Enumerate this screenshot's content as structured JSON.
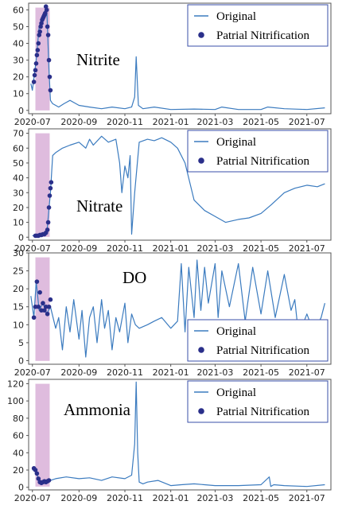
{
  "colors": {
    "line": "#3b7bbf",
    "point": "#2a2f8a",
    "band": "#d9b0d8",
    "frame": "#555555",
    "legend_border": "#3a4fa8"
  },
  "legend": {
    "original": "Original",
    "partial": "Patrial Nitrification"
  },
  "x_ticks": [
    "2020-07",
    "2020-09",
    "2020-11",
    "2021-01",
    "2021-03",
    "2021-05",
    "2021-07"
  ],
  "chart_data": [
    {
      "type": "line",
      "label": "Nitrite",
      "ylim": [
        -2,
        64
      ],
      "yticks": [
        "0",
        "10",
        "20",
        "30",
        "40",
        "50",
        "60"
      ],
      "legend_placement": "top-right",
      "shaded_range": [
        "2020-07-05",
        "2020-07-24"
      ],
      "series": [
        {
          "type": "line",
          "x": [
            "2020-06-29",
            "2020-07-01",
            "2020-07-06",
            "2020-07-10",
            "2020-07-15",
            "2020-07-20",
            "2020-07-23",
            "2020-07-25",
            "2020-07-28",
            "2020-08-05",
            "2020-08-12",
            "2020-08-20",
            "2020-09-01",
            "2020-09-15",
            "2020-10-01",
            "2020-10-15",
            "2020-11-01",
            "2020-11-10",
            "2020-11-14",
            "2020-11-16",
            "2020-11-19",
            "2020-11-25",
            "2020-12-10",
            "2021-01-01",
            "2021-02-01",
            "2021-03-01",
            "2021-03-10",
            "2021-04-01",
            "2021-05-01",
            "2021-05-10",
            "2021-06-01",
            "2021-07-01",
            "2021-07-25"
          ],
          "y": [
            16,
            12,
            30,
            50,
            57,
            62,
            25,
            6,
            4,
            2,
            4,
            6,
            3,
            2,
            1,
            2,
            1,
            2,
            8,
            32,
            3,
            1,
            2,
            0.5,
            0.8,
            0.5,
            2,
            0.5,
            0.5,
            2,
            1,
            0.5,
            1.5
          ]
        },
        {
          "type": "scatter",
          "x": [
            "2020-07-03",
            "2020-07-04",
            "2020-07-05",
            "2020-07-06",
            "2020-07-07",
            "2020-07-08",
            "2020-07-09",
            "2020-07-10",
            "2020-07-11",
            "2020-07-12",
            "2020-07-13",
            "2020-07-14",
            "2020-07-15",
            "2020-07-16",
            "2020-07-17",
            "2020-07-18",
            "2020-07-19",
            "2020-07-20",
            "2020-07-21",
            "2020-07-22",
            "2020-07-23",
            "2020-07-24",
            "2020-07-25"
          ],
          "y": [
            17,
            21,
            24,
            28,
            33,
            36,
            40,
            45,
            47,
            50,
            52,
            54,
            55,
            56,
            57,
            58,
            62,
            60,
            50,
            45,
            30,
            20,
            12
          ]
        }
      ]
    },
    {
      "type": "line",
      "label": "Nitrate",
      "ylim": [
        -2,
        73
      ],
      "yticks": [
        "0",
        "10",
        "20",
        "30",
        "40",
        "50",
        "60",
        "70"
      ],
      "legend_placement": "top-right",
      "shaded_range": [
        "2020-07-05",
        "2020-07-24"
      ],
      "series": [
        {
          "type": "line",
          "x": [
            "2020-07-01",
            "2020-07-15",
            "2020-07-20",
            "2020-07-25",
            "2020-07-28",
            "2020-08-01",
            "2020-08-10",
            "2020-08-20",
            "2020-09-01",
            "2020-09-10",
            "2020-09-15",
            "2020-09-20",
            "2020-10-01",
            "2020-10-10",
            "2020-10-20",
            "2020-10-25",
            "2020-10-28",
            "2020-11-01",
            "2020-11-05",
            "2020-11-08",
            "2020-11-10",
            "2020-11-14",
            "2020-11-20",
            "2020-12-01",
            "2020-12-10",
            "2020-12-20",
            "2021-01-01",
            "2021-01-10",
            "2021-01-20",
            "2021-02-01",
            "2021-02-15",
            "2021-03-01",
            "2021-03-15",
            "2021-04-01",
            "2021-04-15",
            "2021-05-01",
            "2021-05-15",
            "2021-06-01",
            "2021-06-15",
            "2021-07-01",
            "2021-07-15",
            "2021-07-25"
          ],
          "y": [
            1,
            1,
            2,
            30,
            55,
            57,
            60,
            62,
            64,
            60,
            66,
            62,
            68,
            64,
            66,
            50,
            30,
            48,
            40,
            55,
            2,
            30,
            64,
            66,
            65,
            67,
            64,
            60,
            50,
            25,
            18,
            14,
            10,
            12,
            13,
            16,
            22,
            30,
            33,
            35,
            34,
            36
          ]
        },
        {
          "type": "scatter",
          "x": [
            "2020-07-05",
            "2020-07-07",
            "2020-07-09",
            "2020-07-11",
            "2020-07-13",
            "2020-07-15",
            "2020-07-17",
            "2020-07-19",
            "2020-07-21",
            "2020-07-22",
            "2020-07-23",
            "2020-07-24",
            "2020-07-25",
            "2020-07-26"
          ],
          "y": [
            1,
            1,
            1,
            1.5,
            1.5,
            2,
            2,
            3,
            5,
            10,
            20,
            28,
            33,
            37
          ]
        }
      ]
    },
    {
      "type": "line",
      "label": "DO",
      "ylim": [
        -1,
        30
      ],
      "yticks": [
        "0",
        "5",
        "10",
        "15",
        "20",
        "25",
        "30"
      ],
      "legend_placement": "lower-right",
      "shaded_range": [
        "2020-07-05",
        "2020-07-24"
      ],
      "series": [
        {
          "type": "line",
          "x": [
            "2020-06-29",
            "2020-07-03",
            "2020-07-06",
            "2020-07-10",
            "2020-07-15",
            "2020-07-20",
            "2020-07-25",
            "2020-08-01",
            "2020-08-05",
            "2020-08-10",
            "2020-08-15",
            "2020-08-20",
            "2020-08-25",
            "2020-09-01",
            "2020-09-05",
            "2020-09-10",
            "2020-09-15",
            "2020-09-20",
            "2020-09-25",
            "2020-10-01",
            "2020-10-05",
            "2020-10-10",
            "2020-10-15",
            "2020-10-20",
            "2020-10-25",
            "2020-11-01",
            "2020-11-05",
            "2020-11-10",
            "2020-11-15",
            "2020-11-20",
            "2020-12-01",
            "2020-12-10",
            "2020-12-20",
            "2021-01-01",
            "2021-01-10",
            "2021-01-15",
            "2021-01-20",
            "2021-01-25",
            "2021-02-01",
            "2021-02-05",
            "2021-02-10",
            "2021-02-15",
            "2021-02-20",
            "2021-03-01",
            "2021-03-05",
            "2021-03-10",
            "2021-03-20",
            "2021-04-01",
            "2021-04-10",
            "2021-04-20",
            "2021-05-01",
            "2021-05-10",
            "2021-05-20",
            "2021-06-01",
            "2021-06-10",
            "2021-06-15",
            "2021-06-20",
            "2021-07-01",
            "2021-07-10",
            "2021-07-20",
            "2021-07-25"
          ],
          "y": [
            18,
            12,
            22,
            14,
            16,
            13,
            15,
            9,
            12,
            3,
            15,
            8,
            17,
            6,
            14,
            1,
            12,
            15,
            5,
            17,
            9,
            14,
            3,
            12,
            8,
            16,
            5,
            13,
            10,
            9,
            10,
            11,
            12,
            9,
            11,
            27,
            8,
            26,
            12,
            28,
            14,
            26,
            16,
            27,
            12,
            25,
            15,
            27,
            11,
            26,
            13,
            25,
            12,
            24,
            14,
            17,
            7,
            13,
            8,
            12,
            16
          ]
        },
        {
          "type": "scatter",
          "x": [
            "2020-07-03",
            "2020-07-05",
            "2020-07-07",
            "2020-07-09",
            "2020-07-11",
            "2020-07-13",
            "2020-07-15",
            "2020-07-17",
            "2020-07-19",
            "2020-07-21",
            "2020-07-23",
            "2020-07-25"
          ],
          "y": [
            12,
            15,
            22,
            15,
            19,
            14,
            16,
            14,
            15,
            13,
            15,
            17
          ]
        }
      ]
    },
    {
      "type": "line",
      "label": "Ammonia",
      "ylim": [
        -3,
        125
      ],
      "yticks": [
        "0",
        "20",
        "40",
        "60",
        "80",
        "100",
        "120"
      ],
      "legend_placement": "top-right",
      "shaded_range": [
        "2020-07-05",
        "2020-07-24"
      ],
      "series": [
        {
          "type": "line",
          "x": [
            "2020-07-01",
            "2020-07-05",
            "2020-07-10",
            "2020-07-15",
            "2020-07-20",
            "2020-07-25",
            "2020-08-01",
            "2020-08-15",
            "2020-09-01",
            "2020-09-15",
            "2020-10-01",
            "2020-10-15",
            "2020-11-01",
            "2020-11-10",
            "2020-11-14",
            "2020-11-16",
            "2020-11-18",
            "2020-11-20",
            "2020-11-25",
            "2020-12-01",
            "2020-12-15",
            "2021-01-01",
            "2021-01-15",
            "2021-02-01",
            "2021-03-01",
            "2021-04-01",
            "2021-05-01",
            "2021-05-12",
            "2021-05-14",
            "2021-05-18",
            "2021-06-01",
            "2021-07-01",
            "2021-07-25"
          ],
          "y": [
            20,
            20,
            8,
            5,
            6,
            8,
            10,
            12,
            10,
            11,
            8,
            12,
            10,
            14,
            50,
            122,
            40,
            6,
            4,
            6,
            8,
            2,
            3,
            4,
            2,
            2,
            3,
            12,
            1,
            3,
            2,
            1,
            3
          ]
        },
        {
          "type": "scatter",
          "x": [
            "2020-07-03",
            "2020-07-05",
            "2020-07-07",
            "2020-07-09",
            "2020-07-11",
            "2020-07-13",
            "2020-07-15",
            "2020-07-17",
            "2020-07-19",
            "2020-07-21",
            "2020-07-23"
          ],
          "y": [
            22,
            20,
            16,
            10,
            6,
            5,
            6,
            7,
            6,
            7,
            8
          ]
        }
      ]
    }
  ]
}
